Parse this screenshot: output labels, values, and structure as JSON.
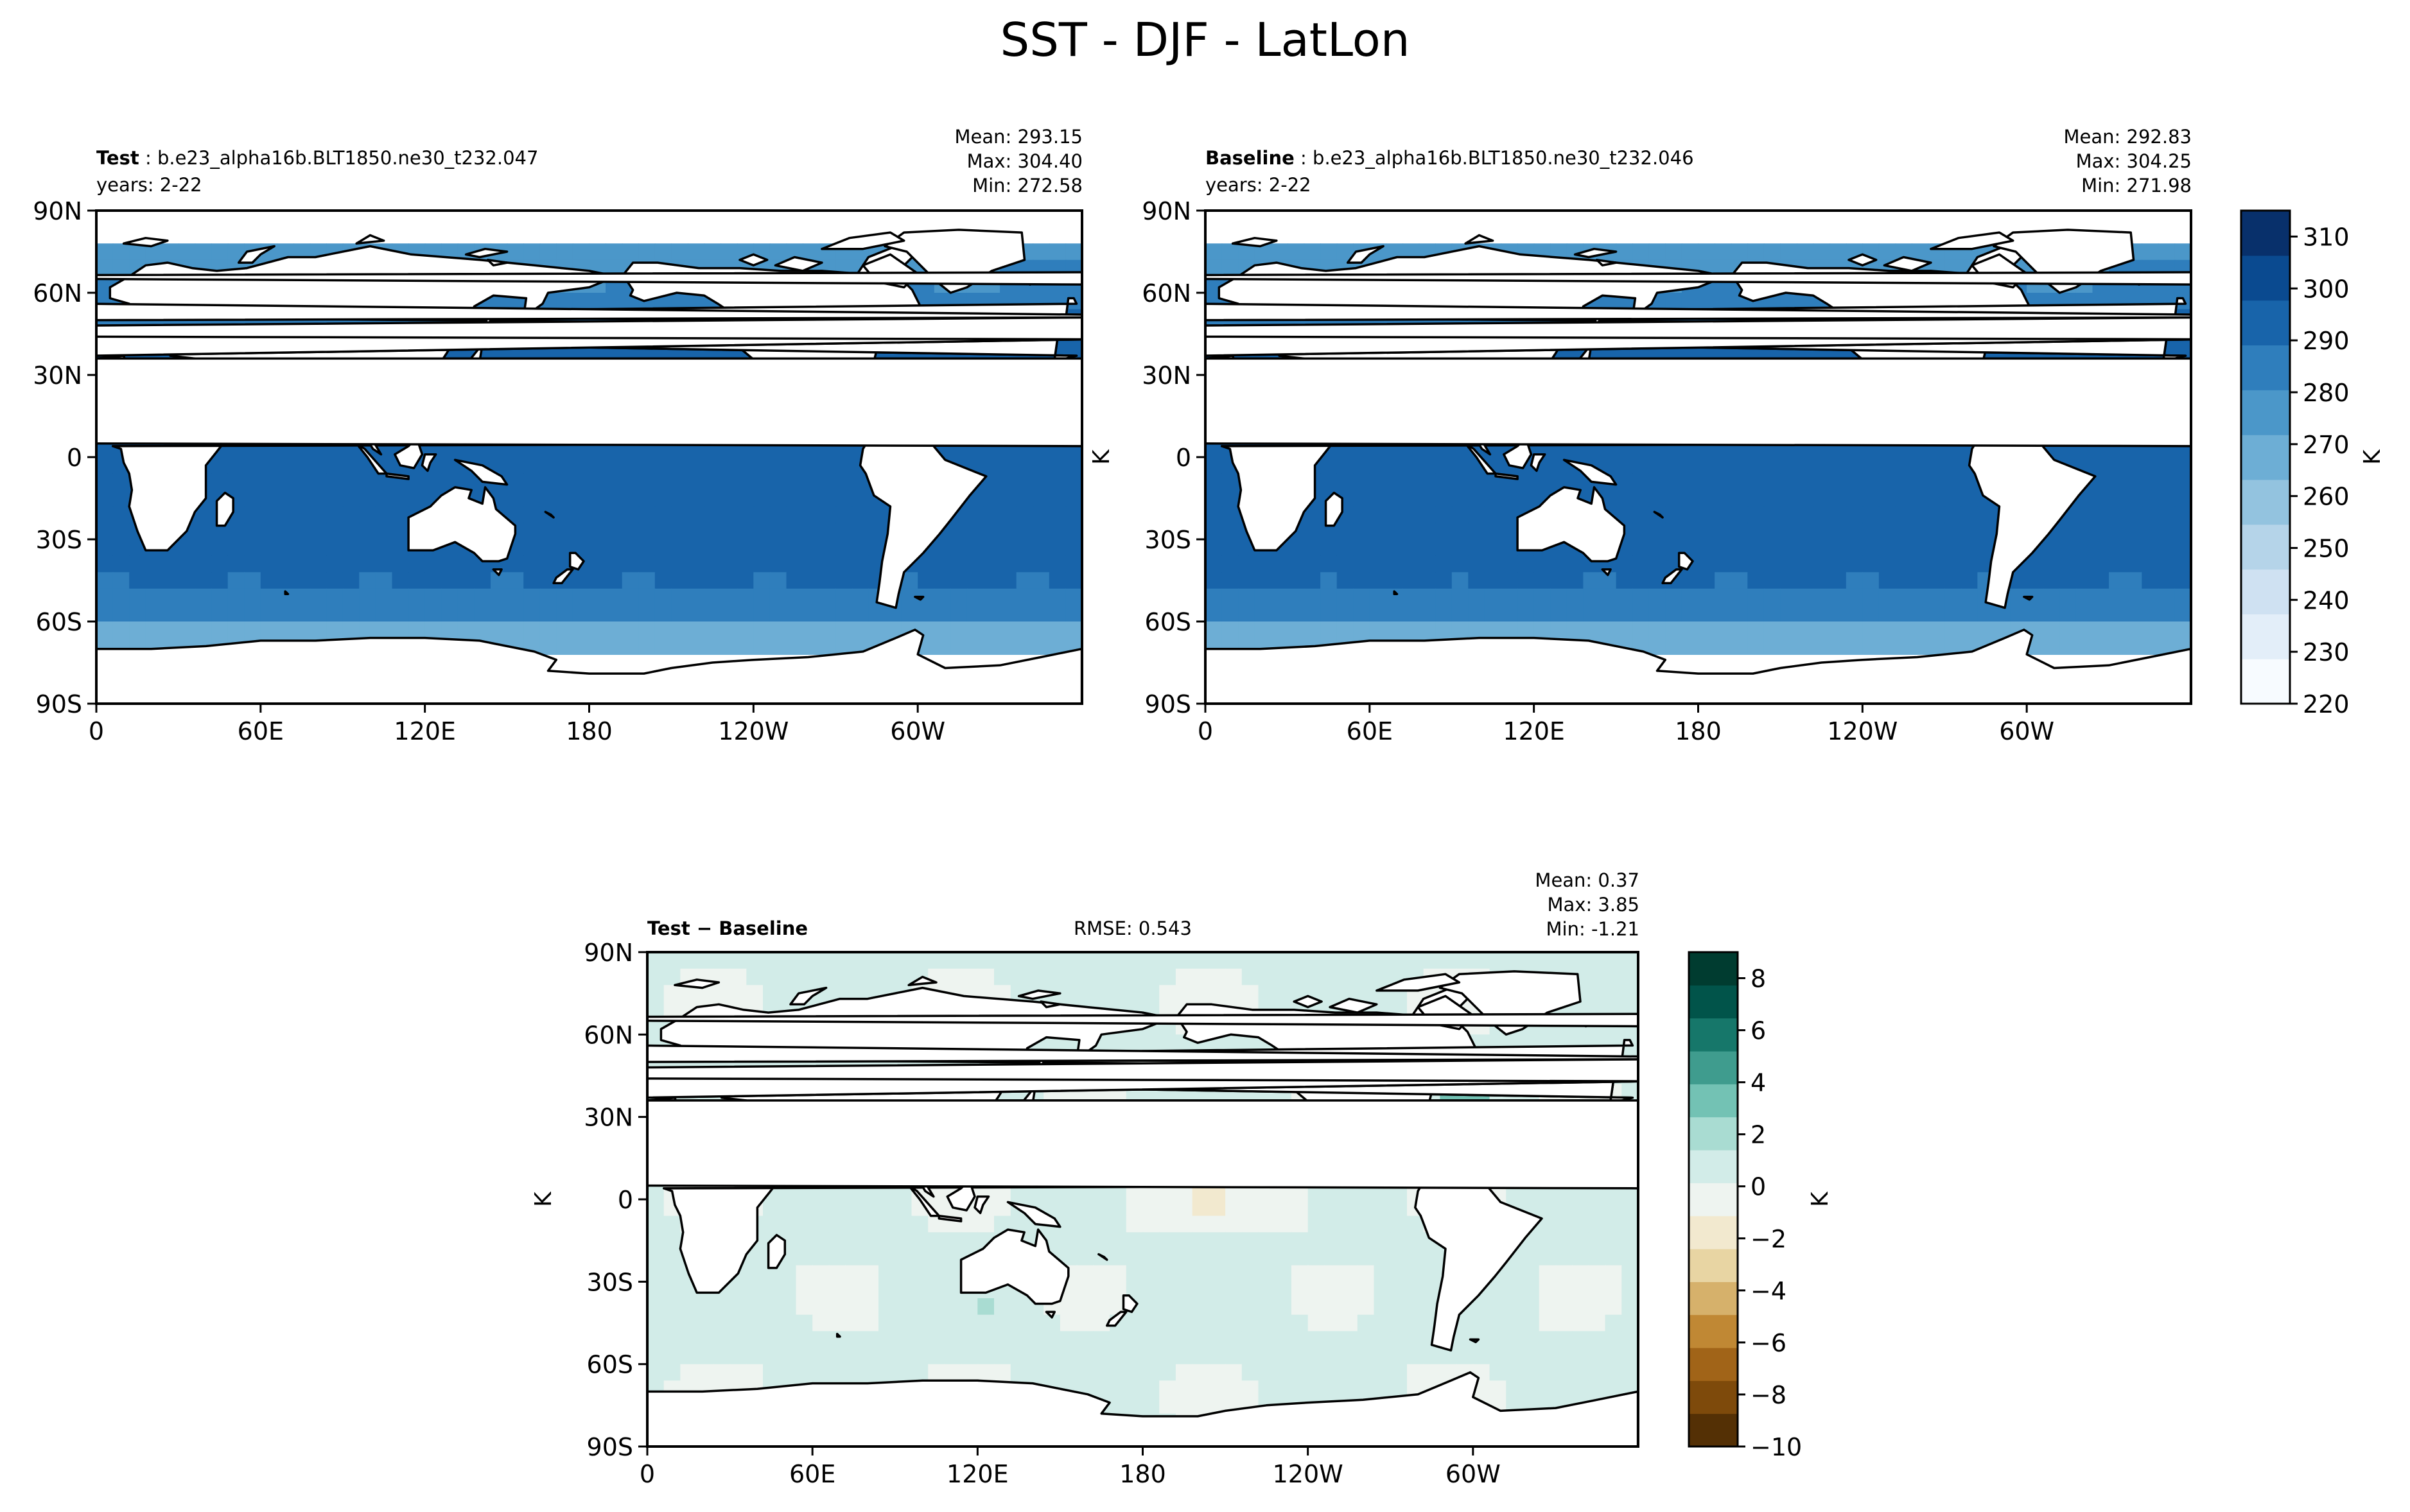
{
  "figure": {
    "title": "SST - DJF - LatLon"
  },
  "panels": {
    "test": {
      "label": "Test",
      "case": "b.e23_alpha16b.BLT1850.ne30_t232.047",
      "years": "years: 2-22",
      "stats": {
        "mean": "Mean: 293.15",
        "max": "Max: 304.40",
        "min": "Min: 272.58"
      }
    },
    "baseline": {
      "label": "Baseline",
      "case": "b.e23_alpha16b.BLT1850.ne30_t232.046",
      "years": "years: 2-22",
      "stats": {
        "mean": "Mean: 292.83",
        "max": "Max: 304.25",
        "min": "Min: 271.98"
      }
    },
    "diff": {
      "label": "Test − Baseline",
      "rmse": "RMSE: 0.543",
      "stats": {
        "mean": "Mean:  0.37",
        "max": "Max:  3.85",
        "min": "Min: -1.21"
      }
    }
  },
  "colorbars": {
    "main": {
      "ticks": [
        "220",
        "230",
        "240",
        "250",
        "260",
        "270",
        "280",
        "290",
        "300",
        "310"
      ],
      "label": "K",
      "colors": [
        "#f7fbff",
        "#e3eef9",
        "#cfe1f2",
        "#b5d4e9",
        "#93c3df",
        "#6daed5",
        "#4b97c9",
        "#2f7ebc",
        "#1864aa",
        "#0a4a90",
        "#08306b"
      ]
    },
    "diff": {
      "ticks": [
        "−10",
        "−8",
        "−6",
        "−4",
        "−2",
        "0",
        "2",
        "4",
        "6",
        "8"
      ],
      "label": "K",
      "colors": [
        "#543005",
        "#7e4a0b",
        "#a16418",
        "#c08834",
        "#d6b16b",
        "#e8d5a3",
        "#f2e9cf",
        "#eef4f0",
        "#d2ece8",
        "#a9dcd2",
        "#73c2b4",
        "#3f9c8e",
        "#16776a",
        "#01544a",
        "#003c30"
      ]
    }
  },
  "chart_data": [
    {
      "type": "heatmap",
      "title": "Test",
      "xlabel": "",
      "ylabel": "",
      "xlim": [
        0,
        360
      ],
      "ylim": [
        -90,
        90
      ],
      "x_ticks": [
        "0",
        "60E",
        "120E",
        "180",
        "120W",
        "60W"
      ],
      "y_ticks": [
        "90S",
        "60S",
        "30S",
        "0",
        "30N",
        "60N",
        "90N"
      ],
      "color_range": [
        220,
        315
      ],
      "units": "K",
      "note_fields": {
        "mean": 293.15,
        "max": 304.4,
        "min": 272.58
      }
    },
    {
      "type": "heatmap",
      "title": "Baseline",
      "xlabel": "",
      "ylabel": "K",
      "xlim": [
        0,
        360
      ],
      "ylim": [
        -90,
        90
      ],
      "x_ticks": [
        "0",
        "60E",
        "120E",
        "180",
        "120W",
        "60W"
      ],
      "y_ticks": [
        "90S",
        "60S",
        "30S",
        "0",
        "30N",
        "60N",
        "90N"
      ],
      "color_range": [
        220,
        315
      ],
      "units": "K",
      "note_fields": {
        "mean": 292.83,
        "max": 304.25,
        "min": 271.98
      }
    },
    {
      "type": "heatmap",
      "title": "Test − Baseline",
      "xlabel": "",
      "ylabel": "K",
      "xlim": [
        0,
        360
      ],
      "ylim": [
        -90,
        90
      ],
      "x_ticks": [
        "0",
        "60E",
        "120E",
        "180",
        "120W",
        "60W"
      ],
      "y_ticks": [
        "90S",
        "60S",
        "30S",
        "0",
        "30N",
        "60N",
        "90N"
      ],
      "color_range": [
        -10,
        9
      ],
      "units": "K",
      "note_fields": {
        "mean": 0.37,
        "max": 3.85,
        "min": -1.21,
        "rmse": 0.543
      }
    }
  ]
}
